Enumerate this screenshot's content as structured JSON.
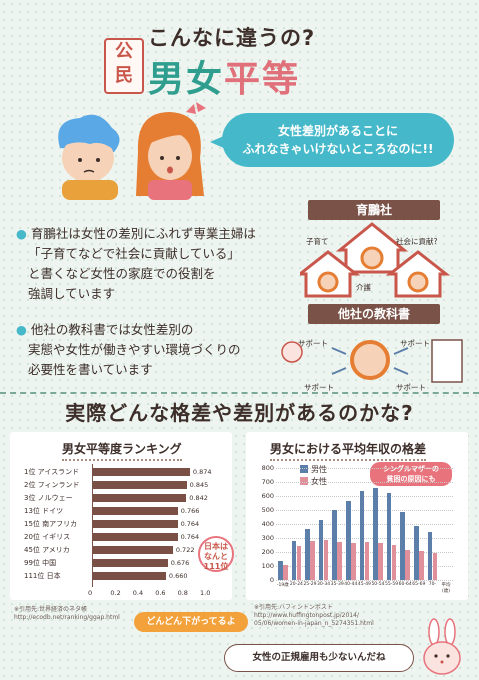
{
  "header": {
    "badge": [
      "公",
      "民"
    ],
    "subtitle": "こんなに違うの?",
    "title_part1": "男女",
    "title_part2": "平等"
  },
  "speech_bubble": {
    "line1": "女性差別があることに",
    "line2": "ふれなきゃいけないところなのに!!"
  },
  "bullets": [
    {
      "lines": [
        "育鵬社は女性の差別にふれず専業主婦は",
        "「子育てなどで社会に貢献している」",
        "と書くなど女性の家庭での役割を",
        "強調しています"
      ]
    },
    {
      "lines": [
        "他社の教科書では女性差別の",
        "実態や女性が働きやすい環境づくりの",
        "必要性を書いています"
      ]
    }
  ],
  "illustrations": {
    "tag1": "育鵬社",
    "tag2": "他社の教科書",
    "label_kosodate": "子育て",
    "label_kaigo": "介護",
    "label_koken": "社会に貢献?",
    "support": [
      "サポート",
      "サポート",
      "サポート",
      "サポート"
    ]
  },
  "section_heading": "実際どんな格差や差別があるのかな?",
  "ranking_chart": {
    "title": "男女平等度ランキング",
    "source": "※引用先:世界経済のネタ帳\nhttp://ecodb.net/ranking/ggap.html",
    "callout_jp": [
      "日本は",
      "なんと",
      "111位"
    ],
    "callout_bottom": "どんどん下がってるよ"
  },
  "income_chart": {
    "title": "男女における平均年収の格差",
    "legend_male": "男性",
    "legend_female": "女性",
    "callout": [
      "シングルマザーの",
      "貧困の原因にも"
    ],
    "source": "※引用先:ハフィントンポスト\nhttp://www.huffingtonpost.jp/2014/\n05/06/women-in-japan_n_5274351.html"
  },
  "bottom_bubble": "女性の正規雇用も少ないんだね",
  "colors": {
    "teal": "#2f9e8e",
    "pink": "#e0707a",
    "brown": "#7a4f45",
    "blue": "#5b7fa8",
    "orange": "#f3a13b"
  },
  "chart_data": [
    {
      "type": "bar",
      "title": "男女平等度ランキング",
      "categories": [
        "1位 アイスランド",
        "2位 フィンランド",
        "3位 ノルウェー",
        "13位 ドイツ",
        "15位 南アフリカ",
        "20位 イギリス",
        "45位 アメリカ",
        "99位 中国",
        "111位 日本"
      ],
      "values": [
        0.874,
        0.845,
        0.842,
        0.766,
        0.764,
        0.764,
        0.722,
        0.676,
        0.66
      ],
      "value_labels": [
        "0.874",
        "0.845",
        "0.842",
        "0.766",
        "0.764",
        "0.764",
        "0.722",
        "0.676",
        "0.660"
      ],
      "xlim": [
        0,
        1.0
      ],
      "ticks": [
        "0",
        "0.2",
        "0.4",
        "0.6",
        "0.8",
        "1.0"
      ]
    },
    {
      "type": "bar",
      "title": "男女における平均年収の格差",
      "categories": [
        "-19",
        "20-24",
        "25-29",
        "30-34",
        "35-39",
        "40-44",
        "45-49",
        "50-54",
        "55-59",
        "60-64",
        "65-69",
        "70-",
        "平均"
      ],
      "category_labels": [
        "-19歳",
        "20-24",
        "25-29",
        "30-34",
        "35-39",
        "40-44",
        "45-49",
        "50-54",
        "55-59",
        "60-64",
        "65-69",
        "70-",
        "平均 (歳)"
      ],
      "series": [
        {
          "name": "男性",
          "values": [
            135,
            280,
            367,
            432,
            498,
            567,
            634,
            654,
            618,
            487,
            386,
            343,
            0
          ]
        },
        {
          "name": "女性",
          "values": [
            106,
            243,
            279,
            283,
            270,
            266,
            269,
            265,
            250,
            217,
            210,
            192,
            0
          ]
        }
      ],
      "ylim": [
        0,
        800
      ],
      "yticks": [
        "0",
        "100",
        "200",
        "300",
        "400",
        "500",
        "600",
        "700",
        "800"
      ],
      "legend": "top-left"
    }
  ]
}
